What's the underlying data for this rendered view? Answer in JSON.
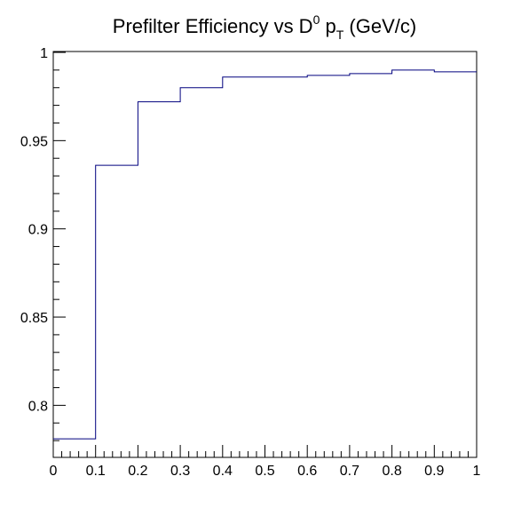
{
  "chart_data": {
    "type": "line",
    "drawstyle": "steps-post",
    "title_parts": {
      "prefix": "Prefilter Efficiency vs D",
      "sup": "0",
      "mid": " p",
      "sub": "T",
      "suffix": " (GeV/c)"
    },
    "xlabel": "",
    "ylabel": "",
    "xlim": [
      0,
      1
    ],
    "ylim": [
      0.7705,
      1.0005
    ],
    "grid": false,
    "legend": "none",
    "line_color": "#00007f",
    "bin_edges": [
      0,
      0.1,
      0.2,
      0.3,
      0.4,
      0.5,
      0.6,
      0.7,
      0.8,
      0.9,
      1.0
    ],
    "values": [
      0.781,
      0.936,
      0.972,
      0.98,
      0.986,
      0.986,
      0.987,
      0.988,
      0.99,
      0.989
    ],
    "x_ticks": [
      {
        "v": 0,
        "label": "0"
      },
      {
        "v": 0.1,
        "label": "0.1"
      },
      {
        "v": 0.2,
        "label": "0.2"
      },
      {
        "v": 0.3,
        "label": "0.3"
      },
      {
        "v": 0.4,
        "label": "0.4"
      },
      {
        "v": 0.5,
        "label": "0.5"
      },
      {
        "v": 0.6,
        "label": "0.6"
      },
      {
        "v": 0.7,
        "label": "0.7"
      },
      {
        "v": 0.8,
        "label": "0.8"
      },
      {
        "v": 0.9,
        "label": "0.9"
      },
      {
        "v": 1.0,
        "label": "1"
      }
    ],
    "y_ticks": [
      {
        "v": 0.8,
        "label": "0.8"
      },
      {
        "v": 0.85,
        "label": "0.85"
      },
      {
        "v": 0.9,
        "label": "0.9"
      },
      {
        "v": 0.95,
        "label": "0.95"
      },
      {
        "v": 1.0,
        "label": "1"
      }
    ]
  }
}
